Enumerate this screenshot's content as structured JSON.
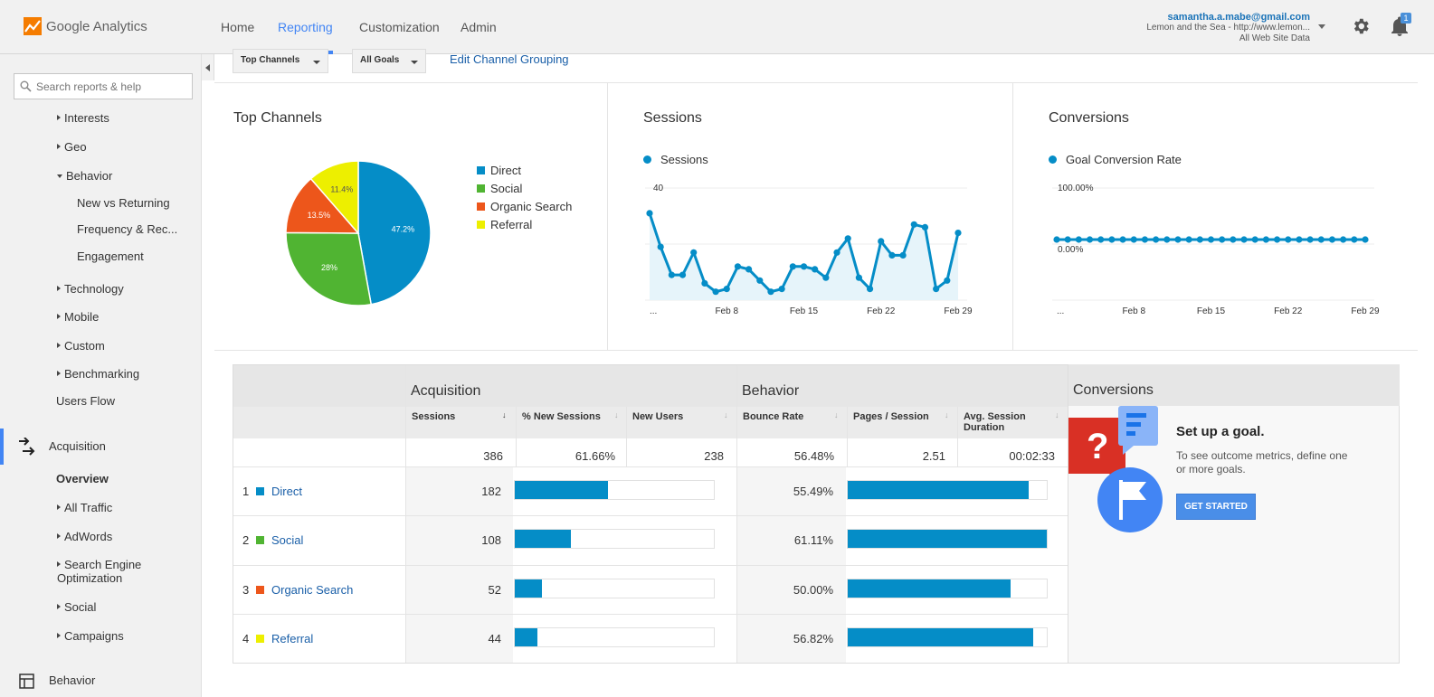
{
  "app": {
    "brand": "Google Analytics"
  },
  "nav": {
    "items": [
      "Home",
      "Reporting",
      "Customization",
      "Admin"
    ],
    "active": "Reporting"
  },
  "account": {
    "email": "samantha.a.mabe@gmail.com",
    "property": "Lemon and the Sea - http://www.lemon...",
    "view": "All Web Site Data",
    "notification_count": "1"
  },
  "sidebar": {
    "search_placeholder": "Search reports & help",
    "items": [
      {
        "label": "Interests",
        "type": "collapsed"
      },
      {
        "label": "Geo",
        "type": "collapsed"
      },
      {
        "label": "Behavior",
        "type": "expanded"
      },
      {
        "label": "New vs Returning",
        "type": "leaf"
      },
      {
        "label": "Frequency & Rec...",
        "type": "leaf"
      },
      {
        "label": "Engagement",
        "type": "leaf"
      },
      {
        "label": "Technology",
        "type": "collapsed"
      },
      {
        "label": "Mobile",
        "type": "collapsed"
      },
      {
        "label": "Custom",
        "type": "collapsed"
      },
      {
        "label": "Benchmarking",
        "type": "collapsed"
      },
      {
        "label": "Users Flow",
        "type": "leaf"
      },
      {
        "label": "Acquisition",
        "type": "section"
      },
      {
        "label": "Overview",
        "type": "active"
      },
      {
        "label": "All Traffic",
        "type": "collapsed"
      },
      {
        "label": "AdWords",
        "type": "collapsed"
      },
      {
        "label": "Search Engine Optimization",
        "type": "collapsed"
      },
      {
        "label": "Social",
        "type": "collapsed"
      },
      {
        "label": "Campaigns",
        "type": "collapsed"
      },
      {
        "label": "Behavior",
        "type": "section"
      }
    ]
  },
  "filters": {
    "channel_dropdown": "Top Channels",
    "goal_dropdown": "All Goals",
    "edit_link": "Edit Channel Grouping"
  },
  "colors": {
    "direct": "#058dc7",
    "social": "#50b432",
    "organic_search": "#ed561b",
    "referral": "#edef00",
    "accent": "#4285f4"
  },
  "panels": {
    "top_channels": {
      "title": "Top Channels",
      "legend": [
        "Direct",
        "Social",
        "Organic Search",
        "Referral"
      ]
    },
    "sessions": {
      "title": "Sessions",
      "legend": "Sessions"
    },
    "conversions": {
      "title": "Conversions",
      "legend": "Goal Conversion Rate"
    }
  },
  "chart_data": [
    {
      "type": "pie",
      "categories": [
        "Direct",
        "Social",
        "Organic Search",
        "Referral"
      ],
      "values": [
        47.2,
        28,
        13.5,
        11.4
      ],
      "labels": [
        "47.2%",
        "28%",
        "13.5%",
        "11.4%"
      ]
    },
    {
      "type": "area",
      "series": [
        {
          "name": "Sessions",
          "values": [
            31,
            19,
            9,
            9,
            17,
            6,
            3,
            4,
            12,
            11,
            7,
            3,
            4,
            12,
            12,
            11,
            8,
            17,
            22,
            8,
            4,
            21,
            16,
            16,
            27,
            26,
            4,
            7,
            24
          ]
        }
      ],
      "x_ticks": [
        "...",
        "Feb 8",
        "Feb 15",
        "Feb 22",
        "Feb 29"
      ],
      "y_ticks": [
        "40",
        "20"
      ],
      "ylim": [
        0,
        40
      ]
    },
    {
      "type": "line",
      "series": [
        {
          "name": "Goal Conversion Rate",
          "values": [
            0,
            0,
            0,
            0,
            0,
            0,
            0,
            0,
            0,
            0,
            0,
            0,
            0,
            0,
            0,
            0,
            0,
            0,
            0,
            0,
            0,
            0,
            0,
            0,
            0,
            0,
            0,
            0,
            0
          ]
        }
      ],
      "x_ticks": [
        "...",
        "Feb 8",
        "Feb 15",
        "Feb 22",
        "Feb 29"
      ],
      "y_ticks": [
        "100.00%",
        "0.00%"
      ]
    },
    {
      "type": "table",
      "groups": [
        "Acquisition",
        "Behavior",
        "Conversions"
      ],
      "columns": [
        "Sessions",
        "% New Sessions",
        "New Users",
        "Bounce Rate",
        "Pages / Session",
        "Avg. Session Duration"
      ],
      "totals": [
        "386",
        "61.66%",
        "238",
        "56.48%",
        "2.51",
        "00:02:33"
      ],
      "rows": [
        {
          "rank": "1",
          "name": "Direct",
          "sessions": "182",
          "new_sessions_pct": 0.47,
          "bounce_rate": "55.49%",
          "pages_session_pct": 0.908
        },
        {
          "rank": "2",
          "name": "Social",
          "sessions": "108",
          "new_sessions_pct": 0.28,
          "bounce_rate": "61.11%",
          "pages_session_pct": 1.0
        },
        {
          "rank": "3",
          "name": "Organic Search",
          "sessions": "52",
          "new_sessions_pct": 0.135,
          "bounce_rate": "50.00%",
          "pages_session_pct": 0.818
        },
        {
          "rank": "4",
          "name": "Referral",
          "sessions": "44",
          "new_sessions_pct": 0.114,
          "bounce_rate": "56.82%",
          "pages_session_pct": 0.93
        }
      ]
    }
  ],
  "goal": {
    "title": "Set up a goal.",
    "description": "To see outcome metrics, define one or more goals.",
    "button": "GET STARTED"
  }
}
